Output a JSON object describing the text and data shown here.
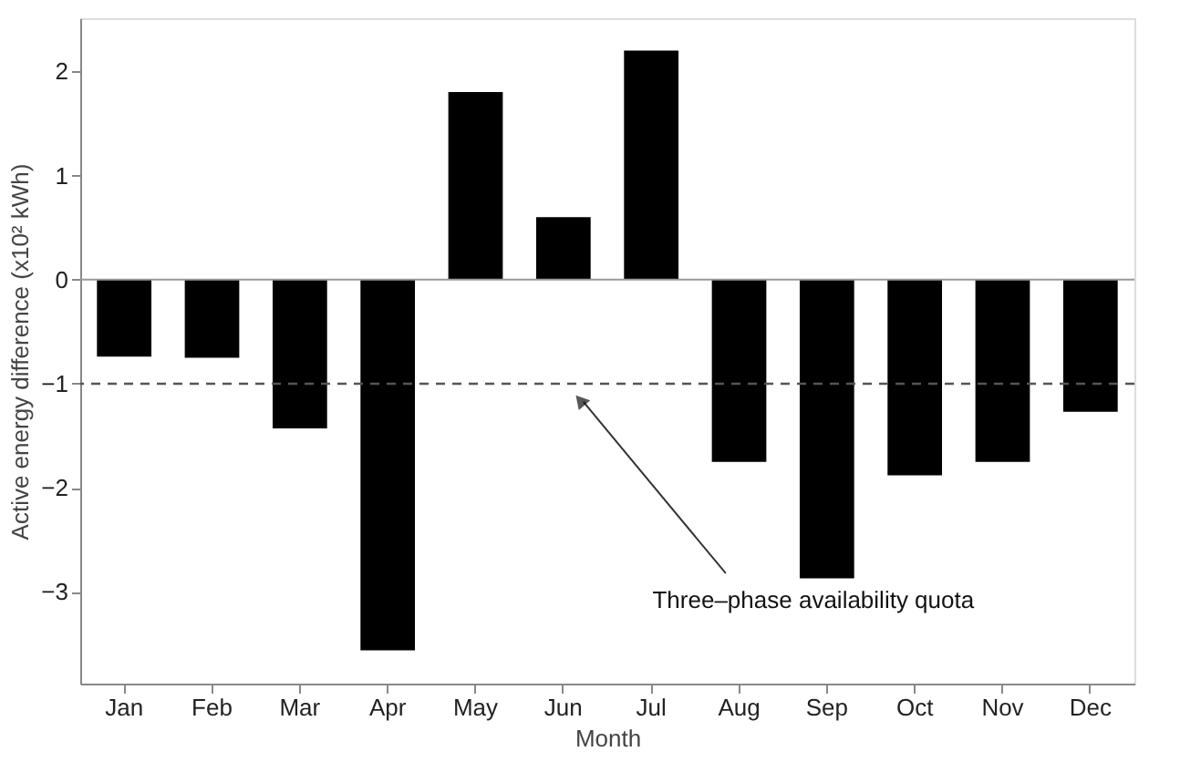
{
  "chart_data": {
    "type": "bar",
    "xlabel": "Month",
    "ylabel": "Active energy difference (x10² kWh)",
    "categories": [
      "Jan",
      "Feb",
      "Mar",
      "Apr",
      "May",
      "Jun",
      "Jul",
      "Aug",
      "Sep",
      "Oct",
      "Nov",
      "Dec"
    ],
    "values": [
      -0.74,
      -0.75,
      -1.43,
      -3.56,
      1.8,
      0.6,
      2.2,
      -1.75,
      -2.87,
      -1.88,
      -1.75,
      -1.27
    ],
    "color": "#000000",
    "ylim": [
      -3.88,
      2.51
    ],
    "yticks": [
      -3,
      -2,
      -1,
      0,
      1,
      2
    ],
    "grid": false,
    "ref_lines": [
      {
        "axis": "y",
        "value": -1,
        "line_style": "dashed",
        "color": "#555555"
      }
    ],
    "annotations": [
      "Three–phase availability quota"
    ]
  }
}
